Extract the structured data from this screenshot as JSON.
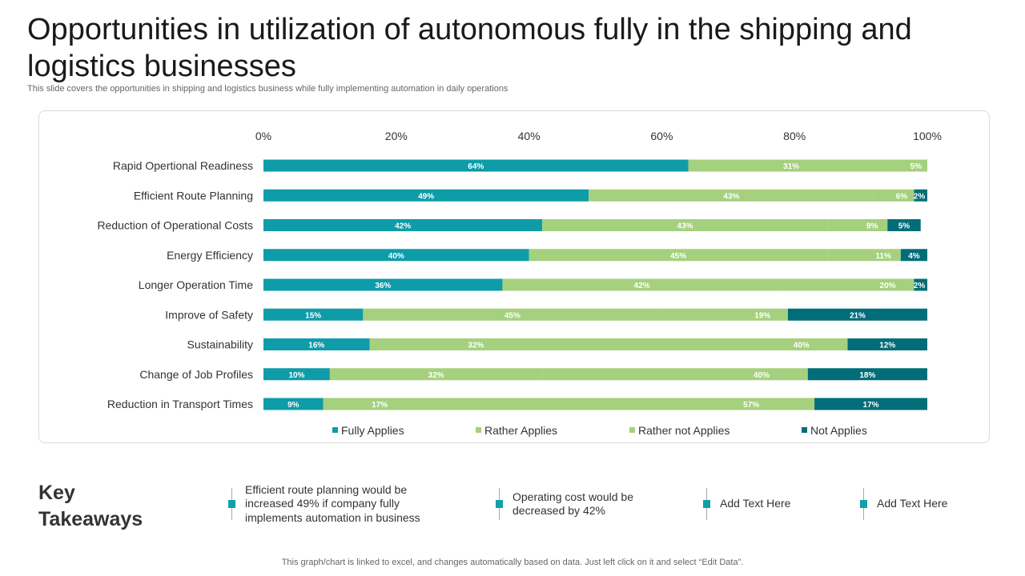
{
  "title": "Opportunities in utilization of autonomous fully in the shipping and logistics businesses",
  "subtitle": "This slide covers the opportunities in shipping and logistics business while fully implementing automation in daily operations",
  "chart_data": {
    "type": "bar",
    "orientation": "horizontal",
    "stacked": true,
    "categories": [
      "Rapid Opertional Readiness",
      "Efficient Route Planning",
      "Reduction of Operational Costs",
      "Energy Efficiency",
      "Longer Operation Time",
      "Improve of Safety",
      "Sustainability",
      "Change of Job Profiles",
      "Reduction in Transport Times"
    ],
    "series": [
      {
        "name": "Fully Applies",
        "color": "#0E9CA8",
        "values": [
          64,
          49,
          42,
          40,
          36,
          15,
          16,
          10,
          9
        ]
      },
      {
        "name": "Rather Applies",
        "color": "#A5D07D",
        "values": [
          31,
          43,
          43,
          45,
          42,
          45,
          32,
          32,
          17
        ]
      },
      {
        "name": "Rather not Applies",
        "color": "#A5D07D",
        "values": [
          5,
          6,
          9,
          11,
          20,
          19,
          40,
          40,
          57
        ]
      },
      {
        "name": "Not Applies",
        "color": "#006D78",
        "values": [
          null,
          2,
          5,
          4,
          2,
          21,
          12,
          18,
          17
        ]
      }
    ],
    "xlim": [
      0,
      100
    ],
    "xticks": [
      "0%",
      "20%",
      "40%",
      "60%",
      "80%",
      "100%"
    ],
    "legend": "bottom",
    "grid": false
  },
  "takeaways": {
    "heading_line1": "Key",
    "heading_line2": "Takeaways",
    "items": [
      {
        "lines": [
          "Efficient route planning would be",
          "increased 49% if company fully",
          "implements automation in business"
        ]
      },
      {
        "lines": [
          "Operating cost would be",
          "decreased by 42%"
        ]
      },
      {
        "lines": [
          "Add Text Here"
        ]
      },
      {
        "lines": [
          "Add Text Here"
        ]
      }
    ]
  },
  "footer": "This graph/chart is linked to excel, and changes automatically based on data. Just left click on it and select “Edit Data”."
}
